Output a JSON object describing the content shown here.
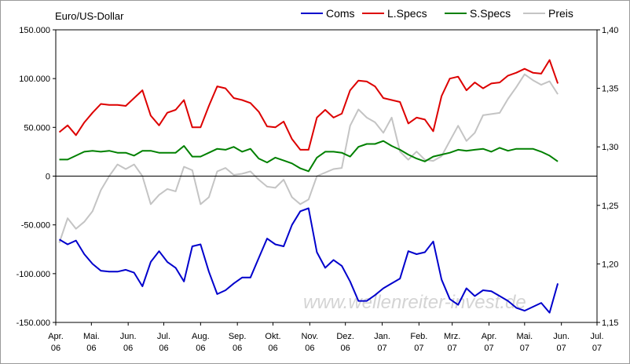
{
  "chart_data": {
    "type": "line",
    "title": "Euro/US-Dollar",
    "watermark": "www.wellenreiter-invest.de",
    "left_axis": {
      "ylim": [
        -150000,
        150000
      ],
      "ticks": [
        -150000,
        -100000,
        -50000,
        0,
        50000,
        100000,
        150000
      ],
      "tick_labels": [
        "-150.000",
        "-100.000",
        "-50.000",
        "0",
        "50.000",
        "100.000",
        "150.000"
      ]
    },
    "right_axis": {
      "ylim": [
        1.15,
        1.4
      ],
      "ticks": [
        1.15,
        1.2,
        1.25,
        1.3,
        1.35,
        1.4
      ],
      "tick_labels": [
        "1,15",
        "1,20",
        "1,25",
        "1,30",
        "1,35",
        "1,40"
      ]
    },
    "x_axis": {
      "ticks": [
        "Apr. 06",
        "Mai. 06",
        "Jun. 06",
        "Jul. 06",
        "Aug. 06",
        "Sep. 06",
        "Okt. 06",
        "Nov. 06",
        "Dez. 06",
        "Jan. 07",
        "Feb. 07",
        "Mrz. 07",
        "Apr. 07",
        "Mai. 07",
        "Jun. 07",
        "Jul. 07"
      ],
      "tick_lines": [
        [
          "Apr.",
          "06"
        ],
        [
          "Mai.",
          "06"
        ],
        [
          "Jun.",
          "06"
        ],
        [
          "Jul.",
          "06"
        ],
        [
          "Aug.",
          "06"
        ],
        [
          "Sep.",
          "06"
        ],
        [
          "Okt.",
          "06"
        ],
        [
          "Nov.",
          "06"
        ],
        [
          "Dez.",
          "06"
        ],
        [
          "Jan.",
          "07"
        ],
        [
          "Feb.",
          "07"
        ],
        [
          "Mrz.",
          "07"
        ],
        [
          "Apr.",
          "07"
        ],
        [
          "Mai.",
          "07"
        ],
        [
          "Jun.",
          "07"
        ],
        [
          "Jul.",
          "07"
        ]
      ],
      "range": [
        "2006-04-01",
        "2007-07-01"
      ]
    },
    "grid": false,
    "legend": "top-right",
    "colors": {
      "Coms": "#0000cc",
      "L.Specs": "#dd0000",
      "S.Specs": "#008000",
      "Preis": "#c4c4c4"
    },
    "x": [
      "2006-04-04",
      "2006-04-11",
      "2006-04-18",
      "2006-04-25",
      "2006-05-02",
      "2006-05-09",
      "2006-05-16",
      "2006-05-23",
      "2006-05-30",
      "2006-06-06",
      "2006-06-13",
      "2006-06-20",
      "2006-06-27",
      "2006-07-04",
      "2006-07-11",
      "2006-07-18",
      "2006-07-25",
      "2006-08-01",
      "2006-08-08",
      "2006-08-15",
      "2006-08-22",
      "2006-08-29",
      "2006-09-05",
      "2006-09-12",
      "2006-09-19",
      "2006-09-26",
      "2006-10-03",
      "2006-10-10",
      "2006-10-17",
      "2006-10-24",
      "2006-10-31",
      "2006-11-07",
      "2006-11-14",
      "2006-11-21",
      "2006-11-28",
      "2006-12-05",
      "2006-12-12",
      "2006-12-19",
      "2006-12-26",
      "2007-01-02",
      "2007-01-09",
      "2007-01-16",
      "2007-01-23",
      "2007-01-30",
      "2007-02-06",
      "2007-02-13",
      "2007-02-20",
      "2007-02-27",
      "2007-03-06",
      "2007-03-13",
      "2007-03-20",
      "2007-03-27",
      "2007-04-03",
      "2007-04-10",
      "2007-04-17",
      "2007-04-24",
      "2007-05-01",
      "2007-05-08",
      "2007-05-15",
      "2007-05-22",
      "2007-05-29",
      "2007-06-05",
      "2007-06-12",
      "2007-06-19"
    ],
    "series": [
      {
        "name": "Coms",
        "axis": "left",
        "values": [
          -65000,
          -70000,
          -66000,
          -80000,
          -90000,
          -97000,
          -98000,
          -98000,
          -96000,
          -99000,
          -113000,
          -88000,
          -77000,
          -88000,
          -94000,
          -108000,
          -72000,
          -70000,
          -98000,
          -121000,
          -117000,
          -110000,
          -104000,
          -104000,
          -84000,
          -64000,
          -70000,
          -72000,
          -50000,
          -36000,
          -33000,
          -78000,
          -94000,
          -86000,
          -92000,
          -108000,
          -128000,
          -128000,
          -122000,
          -115000,
          -110000,
          -105000,
          -77000,
          -80000,
          -78000,
          -67000,
          -106000,
          -126000,
          -132000,
          -115000,
          -123000,
          -117000,
          -118000,
          -123000,
          -128000,
          -135000,
          -138000,
          -134000,
          -130000,
          -140000,
          -110000,
          null,
          null,
          null
        ]
      },
      {
        "name": "L.Specs",
        "axis": "left",
        "values": [
          45000,
          52000,
          42000,
          55000,
          65000,
          74000,
          73000,
          73000,
          72000,
          80000,
          88000,
          62000,
          52000,
          65000,
          68000,
          78000,
          50000,
          50000,
          72000,
          92000,
          90000,
          80000,
          78000,
          75000,
          66000,
          51000,
          50000,
          56000,
          38000,
          27000,
          27000,
          60000,
          68000,
          60000,
          64000,
          88000,
          98000,
          97000,
          92000,
          80000,
          78000,
          76000,
          54000,
          60000,
          58000,
          46000,
          82000,
          100000,
          102000,
          88000,
          96000,
          90000,
          95000,
          96000,
          103000,
          106000,
          110000,
          106000,
          105000,
          119000,
          95000,
          null,
          null,
          null
        ]
      },
      {
        "name": "S.Specs",
        "axis": "left",
        "values": [
          17000,
          17000,
          21000,
          25000,
          26000,
          25000,
          26000,
          24000,
          24000,
          21000,
          26000,
          26000,
          24000,
          24000,
          24000,
          31000,
          20000,
          20000,
          24000,
          28000,
          27000,
          30000,
          25000,
          28000,
          18000,
          14000,
          19000,
          16000,
          13000,
          8000,
          5000,
          19000,
          25000,
          25000,
          24000,
          20000,
          30000,
          33000,
          33000,
          36000,
          31000,
          27000,
          22000,
          18000,
          15000,
          20000,
          22000,
          24000,
          27000,
          26000,
          27000,
          28000,
          25000,
          29000,
          26000,
          28000,
          28000,
          28000,
          25000,
          21000,
          15000,
          null,
          null,
          null
        ]
      },
      {
        "name": "Preis",
        "axis": "right",
        "values": [
          1.218,
          1.239,
          1.23,
          1.236,
          1.245,
          1.263,
          1.275,
          1.285,
          1.281,
          1.285,
          1.275,
          1.251,
          1.259,
          1.264,
          1.262,
          1.283,
          1.28,
          1.251,
          1.257,
          1.279,
          1.282,
          1.276,
          1.277,
          1.279,
          1.272,
          1.266,
          1.265,
          1.272,
          1.257,
          1.251,
          1.255,
          1.275,
          1.278,
          1.281,
          1.282,
          1.318,
          1.332,
          1.325,
          1.321,
          1.312,
          1.325,
          1.296,
          1.289,
          1.296,
          1.289,
          1.288,
          1.292,
          1.305,
          1.318,
          1.305,
          1.312,
          1.327,
          1.328,
          1.329,
          1.341,
          1.351,
          1.362,
          1.357,
          1.353,
          1.356,
          1.345,
          null,
          null,
          null
        ]
      }
    ]
  }
}
